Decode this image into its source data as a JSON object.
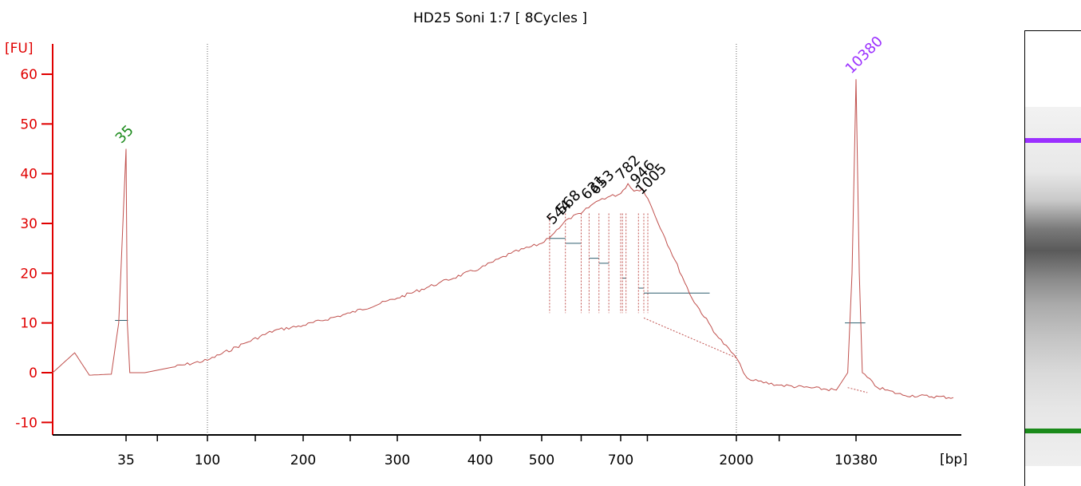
{
  "header": {
    "title": "HD25 Soni 1:7  [ 8Cycles ]"
  },
  "colors": {
    "trace": "#c0504d",
    "axis": "#e00000",
    "lower_marker": "#1b8a1b",
    "upper_marker": "#9b30ff",
    "region_line": "#2f5f6f",
    "gel_upper_band": "#9b30ff",
    "gel_lower_band": "#1a8a1a"
  },
  "chart_data": {
    "type": "line",
    "title": "HD25 Soni 1:7  [ 8Cycles ]",
    "ylabel": "[FU]",
    "xlabel": "[bp]",
    "ylim": [
      -12,
      66
    ],
    "y_ticks": [
      "60",
      "50",
      "40",
      "30",
      "20",
      "10",
      "0",
      "-10"
    ],
    "x_ticks": [
      "35",
      "100",
      "200",
      "300",
      "400",
      "500",
      "700",
      "2000",
      "10380"
    ],
    "x_unit": "bp",
    "peaks": [
      {
        "label": "35",
        "bp": 35,
        "fu": 45,
        "color": "lower_marker"
      },
      {
        "label": "10380",
        "bp": 10380,
        "fu": 59,
        "color": "upper_marker"
      }
    ],
    "smear_peak_labels": [
      "544",
      "568",
      "631",
      "653",
      "782",
      "946",
      "1005"
    ],
    "series": [
      {
        "values": [
          [
            25,
            0
          ],
          [
            28,
            4
          ],
          [
            30,
            -0.5
          ],
          [
            33,
            -0.3
          ],
          [
            34,
            10
          ],
          [
            35,
            45
          ],
          [
            36,
            10
          ],
          [
            38,
            0
          ],
          [
            50,
            0
          ],
          [
            70,
            1
          ],
          [
            100,
            2.5
          ],
          [
            140,
            6
          ],
          [
            170,
            8.5
          ],
          [
            200,
            9.5
          ],
          [
            250,
            12
          ],
          [
            300,
            15
          ],
          [
            350,
            18
          ],
          [
            400,
            21
          ],
          [
            450,
            24
          ],
          [
            500,
            26
          ],
          [
            544,
            29
          ],
          [
            568,
            31
          ],
          [
            600,
            32
          ],
          [
            631,
            34
          ],
          [
            653,
            35
          ],
          [
            700,
            36
          ],
          [
            782,
            38
          ],
          [
            850,
            36.5
          ],
          [
            946,
            37
          ],
          [
            1005,
            35
          ],
          [
            1200,
            27
          ],
          [
            1500,
            15
          ],
          [
            1800,
            7
          ],
          [
            2000,
            3
          ],
          [
            2500,
            0
          ],
          [
            3000,
            -1.5
          ],
          [
            5000,
            -2.5
          ],
          [
            9000,
            -3.5
          ],
          [
            9800,
            0
          ],
          [
            10100,
            20
          ],
          [
            10380,
            59
          ],
          [
            10700,
            20
          ],
          [
            11000,
            0
          ],
          [
            12500,
            -3
          ],
          [
            15000,
            -4.5
          ],
          [
            20000,
            -5
          ]
        ]
      }
    ],
    "grid": false,
    "dotted_vertical_lines_bp": [
      100,
      2000
    ]
  },
  "gel": {
    "upper_band": "#9b30ff",
    "lower_band": "#1a8a1a"
  }
}
